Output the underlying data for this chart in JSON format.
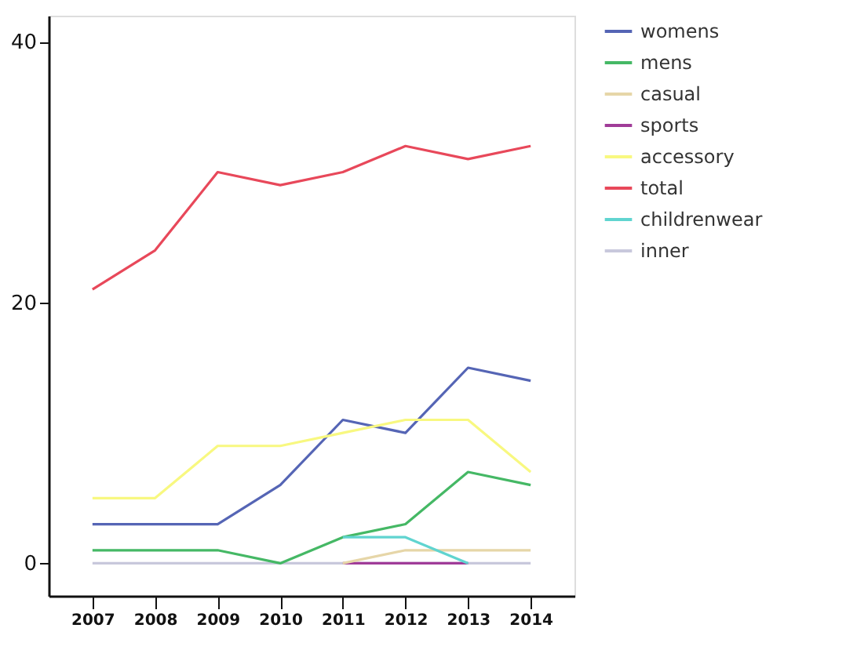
{
  "chart_data": {
    "type": "line",
    "categories": [
      "2007",
      "2008",
      "2009",
      "2010",
      "2011",
      "2012",
      "2013",
      "2014"
    ],
    "series": [
      {
        "name": "womens",
        "color": "#5565b5",
        "values": [
          3,
          3,
          3,
          6,
          11,
          10,
          15,
          14
        ]
      },
      {
        "name": "mens",
        "color": "#45b865",
        "values": [
          1,
          1,
          1,
          0,
          2,
          3,
          7,
          6
        ]
      },
      {
        "name": "casual",
        "color": "#e6d6a8",
        "values": [
          null,
          null,
          null,
          null,
          0,
          1,
          1,
          1
        ]
      },
      {
        "name": "sports",
        "color": "#a03c98",
        "values": [
          null,
          null,
          null,
          null,
          0,
          0,
          0,
          null
        ]
      },
      {
        "name": "accessory",
        "color": "#f8f880",
        "values": [
          5,
          5,
          9,
          9,
          10,
          11,
          11,
          7
        ]
      },
      {
        "name": "total",
        "color": "#e8485a",
        "values": [
          21,
          24,
          30,
          29,
          30,
          32,
          31,
          32
        ]
      },
      {
        "name": "childrenwear",
        "color": "#60d4d0",
        "values": [
          null,
          null,
          null,
          null,
          2,
          2,
          0,
          null
        ]
      },
      {
        "name": "inner",
        "color": "#c8c8dc",
        "values": [
          0,
          0,
          0,
          0,
          0,
          0,
          0,
          0
        ]
      }
    ],
    "ylim": [
      -2.5,
      42
    ],
    "yticks": [
      0,
      20,
      40
    ],
    "grid": false,
    "legend": "right",
    "marker": "none",
    "line_style": "solid"
  }
}
